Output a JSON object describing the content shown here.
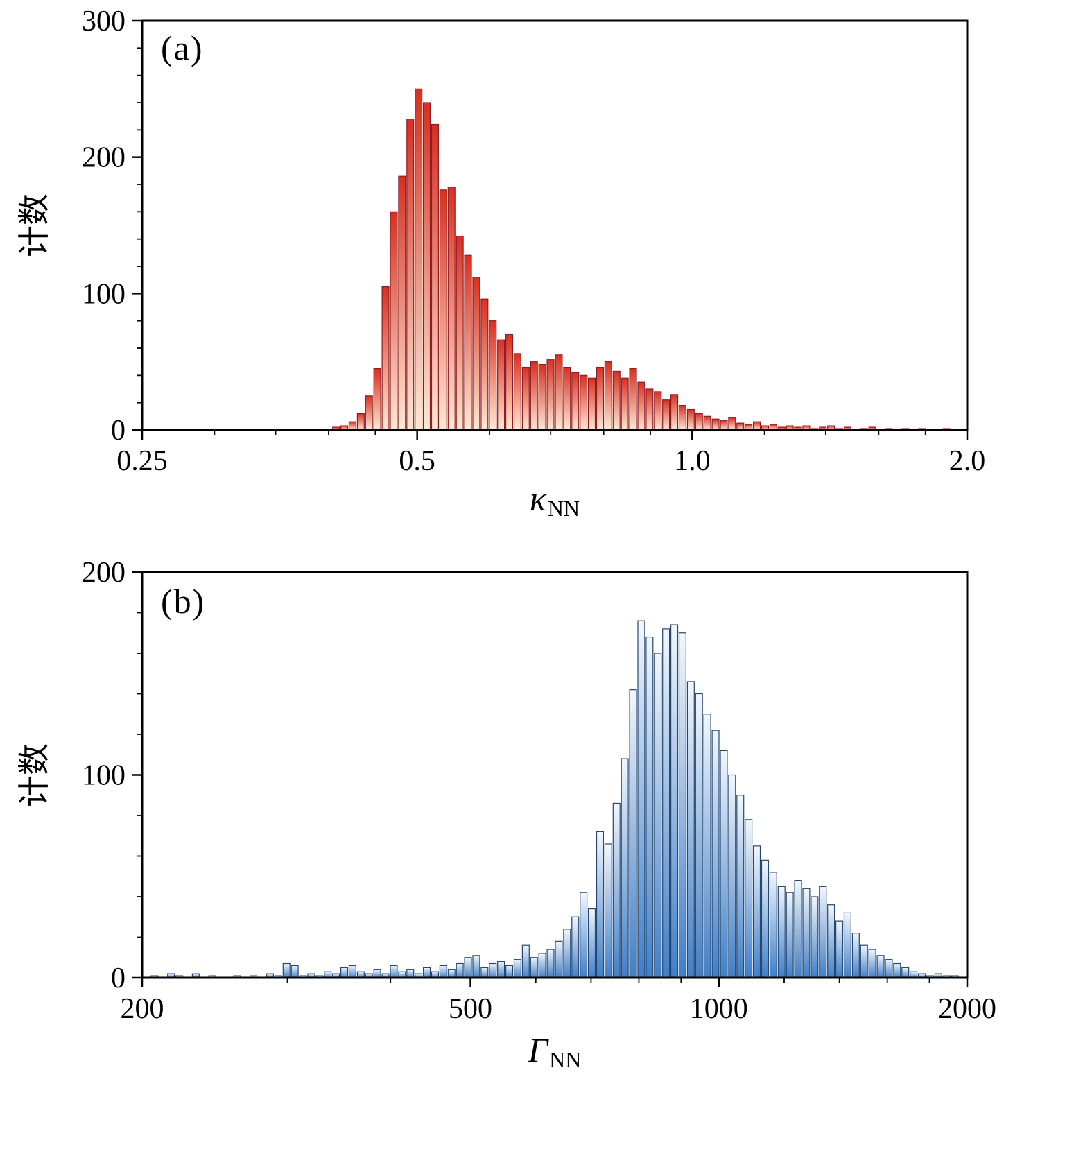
{
  "figure": {
    "background": "#ffffff"
  },
  "chart_data": [
    {
      "type": "bar",
      "panel_label": "(a)",
      "title": "",
      "ylabel": "计数",
      "xlabel_symbol": "κ",
      "xlabel_subscript": "NN",
      "x_scale": "log",
      "x_min": 0.25,
      "x_max": 2.0,
      "y_min": 0,
      "y_max": 300,
      "grid": false,
      "legend": false,
      "x_major_ticks": [
        {
          "v": 0.25,
          "label": "0.25"
        },
        {
          "v": 0.5,
          "label": "0.5"
        },
        {
          "v": 1.0,
          "label": "1.0"
        },
        {
          "v": 2.0,
          "label": "2.0"
        }
      ],
      "x_minor_ticks": [
        0.3,
        0.35,
        0.4,
        0.45,
        0.6,
        0.7,
        0.8,
        0.9,
        1.2,
        1.4,
        1.6,
        1.8
      ],
      "y_major_ticks": [
        {
          "v": 0,
          "label": "0"
        },
        {
          "v": 100,
          "label": "100"
        },
        {
          "v": 200,
          "label": "200"
        },
        {
          "v": 300,
          "label": "300"
        }
      ],
      "y_minor_step": 20,
      "bins": 100,
      "counts": [
        0,
        0,
        0,
        0,
        0,
        0,
        0,
        0,
        0,
        0,
        0,
        0,
        0,
        0,
        0,
        0,
        0,
        0,
        0,
        0,
        0,
        0,
        0,
        2,
        3,
        6,
        12,
        25,
        45,
        105,
        160,
        186,
        228,
        250,
        240,
        224,
        176,
        178,
        142,
        128,
        112,
        96,
        80,
        66,
        70,
        56,
        46,
        50,
        48,
        52,
        55,
        46,
        42,
        40,
        38,
        46,
        50,
        43,
        38,
        45,
        35,
        30,
        28,
        22,
        26,
        18,
        15,
        12,
        10,
        8,
        7,
        9,
        5,
        4,
        6,
        3,
        4,
        2,
        3,
        2,
        3,
        1,
        2,
        3,
        1,
        2,
        0,
        1,
        2,
        0,
        1,
        0,
        1,
        0,
        1,
        0,
        0,
        1,
        0,
        0
      ],
      "colors": {
        "fill_top": "#da2f1e",
        "fill_bottom": "#ffe9d2",
        "stroke": "#8b1e2d"
      }
    },
    {
      "type": "bar",
      "panel_label": "(b)",
      "title": "",
      "ylabel": "计数",
      "xlabel_symbol": "Γ",
      "xlabel_subscript": "NN",
      "x_scale": "log",
      "x_min": 200,
      "x_max": 2000,
      "y_min": 0,
      "y_max": 200,
      "grid": false,
      "legend": false,
      "x_major_ticks": [
        {
          "v": 200,
          "label": "200"
        },
        {
          "v": 500,
          "label": "500"
        },
        {
          "v": 1000,
          "label": "1000"
        },
        {
          "v": 2000,
          "label": "2000"
        }
      ],
      "x_minor_ticks": [
        300,
        400,
        600,
        700,
        800,
        900,
        1200,
        1400,
        1600,
        1800
      ],
      "y_major_ticks": [
        {
          "v": 0,
          "label": "0"
        },
        {
          "v": 100,
          "label": "100"
        },
        {
          "v": 200,
          "label": "200"
        }
      ],
      "y_minor_step": 20,
      "bins": 100,
      "counts": [
        0,
        1,
        0,
        2,
        1,
        0,
        2,
        0,
        1,
        0,
        0,
        1,
        0,
        1,
        0,
        2,
        1,
        7,
        6,
        1,
        2,
        1,
        3,
        2,
        5,
        6,
        3,
        2,
        4,
        2,
        6,
        3,
        4,
        2,
        5,
        3,
        6,
        4,
        7,
        10,
        11,
        5,
        7,
        8,
        6,
        9,
        16,
        10,
        12,
        14,
        18,
        24,
        30,
        42,
        34,
        72,
        66,
        86,
        108,
        142,
        176,
        168,
        160,
        172,
        174,
        170,
        146,
        140,
        130,
        122,
        112,
        100,
        90,
        78,
        65,
        58,
        52,
        45,
        42,
        48,
        44,
        40,
        45,
        36,
        28,
        32,
        22,
        16,
        14,
        11,
        9,
        7,
        5,
        3,
        2,
        1,
        2,
        1,
        1,
        0
      ],
      "colors": {
        "fill_top": "#f2f7fd",
        "fill_bottom": "#3f7fc9",
        "stroke": "#27476e"
      }
    }
  ]
}
